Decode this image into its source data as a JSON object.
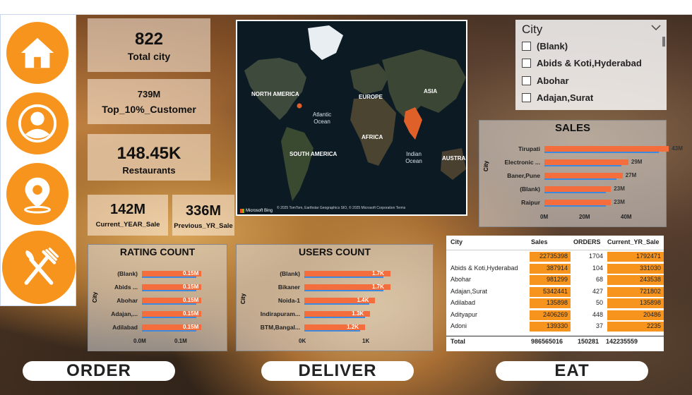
{
  "kpis": {
    "total_city": {
      "value": "822",
      "label": "Total city"
    },
    "top_customer": {
      "value": "739M",
      "label": "Top_10%_Customer"
    },
    "restaurants": {
      "value": "148.45K",
      "label": "Restaurants"
    },
    "current_year_sale": {
      "value": "142M",
      "label": "Current_YEAR_Sale"
    },
    "previous_year_sale": {
      "value": "336M",
      "label": "Previous_YR_Sale"
    }
  },
  "nav": {
    "items": [
      "home-icon",
      "user-icon",
      "location-icon",
      "utensils-icon"
    ],
    "accent": "#f7941d"
  },
  "map": {
    "labels": {
      "north_america": "NORTH AMERICA",
      "europe": "EUROPE",
      "asia": "ASIA",
      "africa": "AFRICA",
      "south_america": "SOUTH AMERICA",
      "australia": "AUSTRAL",
      "atlantic": "Atlantic Ocean",
      "indian": "Indian Ocean"
    },
    "attribution": "© 2025 TomTom, Earthstar Geographics SIO, © 2025 Microsoft Corporation Terms",
    "provider": "Microsoft Bing"
  },
  "city_slicer": {
    "title": "City",
    "options": [
      "(Blank)",
      "Abids & Koti,Hyderabad",
      "Abohar",
      "Adajan,Surat"
    ]
  },
  "sales_chart": {
    "title": "SALES",
    "axis_title": "City",
    "ticks": [
      "0M",
      "20M",
      "40M"
    ]
  },
  "rating_chart": {
    "title": "RATING COUNT",
    "axis_title": "City",
    "ticks": [
      "0.0M",
      "0.1M"
    ]
  },
  "users_chart": {
    "title": "USERS COUNT",
    "axis_title": "City",
    "ticks": [
      "0K",
      "1K"
    ]
  },
  "chart_data": [
    {
      "type": "bar",
      "title": "SALES",
      "ylabel": "City",
      "categories": [
        "Tirupati",
        "Electronic ...",
        "Baner,Pune",
        "(Blank)",
        "Raipur"
      ],
      "values": [
        43,
        29,
        27,
        23,
        23
      ],
      "value_labels": [
        "43M",
        "29M",
        "27M",
        "23M",
        "23M"
      ],
      "xlim": [
        0,
        50
      ]
    },
    {
      "type": "bar",
      "title": "RATING COUNT",
      "ylabel": "City",
      "categories": [
        "(Blank)",
        "Abids ...",
        "Abohar",
        "Adajan,...",
        "Adilabad"
      ],
      "values": [
        0.15,
        0.15,
        0.15,
        0.15,
        0.15
      ],
      "value_labels": [
        "0.15M",
        "0.15M",
        "0.15M",
        "0.15M",
        "0.15M"
      ],
      "xlim": [
        0,
        0.15
      ]
    },
    {
      "type": "bar",
      "title": "USERS COUNT",
      "ylabel": "City",
      "categories": [
        "(Blank)",
        "Bikaner",
        "Noida-1",
        "Indirapuram...",
        "BTM,Bangal..."
      ],
      "values": [
        1.7,
        1.7,
        1.4,
        1.3,
        1.2
      ],
      "value_labels": [
        "1.7K",
        "1.7K",
        "1.4K",
        "1.3K",
        "1.2K"
      ],
      "xlim": [
        0,
        1.7
      ]
    }
  ],
  "table": {
    "headers": [
      "City",
      "Sales",
      "ORDERS",
      "Current_YR_Sale"
    ],
    "rows": [
      [
        "",
        "22735398",
        "1704",
        "1792471"
      ],
      [
        "Abids & Koti,Hyderabad",
        "387914",
        "104",
        "331030"
      ],
      [
        "Abohar",
        "981299",
        "68",
        "243538"
      ],
      [
        "Adajan,Surat",
        "5342441",
        "427",
        "721802"
      ],
      [
        "Adilabad",
        "135898",
        "50",
        "135898"
      ],
      [
        "Adityapur",
        "2406269",
        "448",
        "20486"
      ],
      [
        "Adoni",
        "139330",
        "37",
        "2235"
      ]
    ],
    "total": [
      "Total",
      "986565016",
      "150281",
      "142235559"
    ]
  },
  "buttons": {
    "order": "ORDER",
    "deliver": "DELIVER",
    "eat": "EAT"
  }
}
